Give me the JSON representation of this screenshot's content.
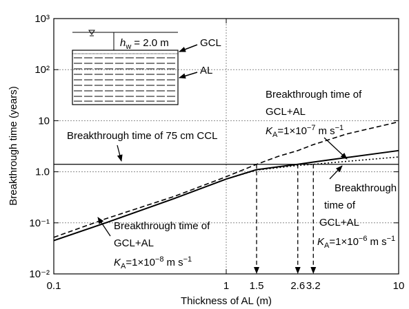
{
  "chart_data": {
    "type": "line",
    "x_label": "Thickness of AL (m)",
    "y_label": "Breakthrough time (years)",
    "x": [
      0.1,
      0.2,
      0.5,
      1,
      1.5,
      2,
      2.6,
      3.2,
      5,
      10
    ],
    "series": [
      {
        "name": "Breakthrough time of 75 cm CCL",
        "color": "#000000",
        "dash": "solid",
        "values": [
          1.4,
          1.4,
          1.4,
          1.4,
          1.4,
          1.4,
          1.4,
          1.4,
          1.4,
          1.4
        ]
      },
      {
        "name": "K_A=1e-8",
        "color": "#000000",
        "dash": "dashed",
        "values": [
          0.052,
          0.12,
          0.33,
          0.8,
          1.4,
          2.0,
          2.6,
          3.4,
          5.5,
          9.5
        ]
      },
      {
        "name": "K_A=1e-7",
        "color": "#000000",
        "dash": "solid-thick",
        "values": [
          0.045,
          0.1,
          0.3,
          0.72,
          1.1,
          1.25,
          1.4,
          1.55,
          1.9,
          2.6
        ]
      },
      {
        "name": "K_A=1e-6",
        "color": "#000000",
        "dash": "dotted",
        "values": [
          0.045,
          0.1,
          0.3,
          0.72,
          1.08,
          1.2,
          1.33,
          1.4,
          1.6,
          1.95
        ]
      }
    ],
    "log_x": true,
    "log_y": true,
    "xlim": [
      0.1,
      10
    ],
    "ylim": [
      0.01,
      1000
    ],
    "xticks": [
      0.1,
      1,
      10
    ],
    "yticks": [
      {
        "value": 0.01,
        "label": "10⁻²"
      },
      {
        "value": 0.1,
        "label": "10⁻¹"
      },
      {
        "value": 1,
        "label": "1.0"
      },
      10,
      {
        "value": 100,
        "label": "10²"
      },
      {
        "value": 1000,
        "label": "10³"
      }
    ],
    "grid": true,
    "drop_lines": [
      1.5,
      2.6,
      3.2
    ],
    "annotations": [
      {
        "lines": [
          "Breakthrough time of 75 cm CCL"
        ]
      },
      {
        "lines": [
          "Breakthrough time of",
          "GCL+AL"
        ],
        "k": {
          "symbol": "K",
          "sub": "A",
          "eq": "=1×10",
          "exp": "−7",
          "unit": "m s",
          "unit_exp": "−1"
        }
      },
      {
        "lines": [
          "Breakthrough",
          "time of",
          "GCL+AL"
        ],
        "k": {
          "symbol": "K",
          "sub": "A",
          "eq": "=1×10",
          "exp": "−6",
          "unit": "m s",
          "unit_exp": "−1"
        }
      },
      {
        "lines": [
          "Breakthrough time of",
          "GCL+AL"
        ],
        "k": {
          "symbol": "K",
          "sub": "A",
          "eq": "=1×10",
          "exp": "−8",
          "unit": "m s",
          "unit_exp": "−1"
        }
      }
    ],
    "inset": {
      "head": {
        "symbol": "h",
        "sub": "w",
        "text": "= 2.0 m"
      },
      "gcl": "GCL",
      "al": "AL"
    }
  }
}
